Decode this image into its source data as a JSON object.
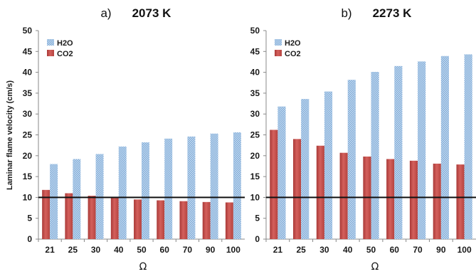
{
  "chart_data": [
    {
      "type": "bar",
      "panel_label": "a)",
      "title": "2073 K",
      "xlabel": "Ω",
      "ylabel": "Laminar flame velocity (cm/s)",
      "ylim": [
        0,
        50
      ],
      "yticks": [
        0,
        5,
        10,
        15,
        20,
        25,
        30,
        35,
        40,
        45,
        50
      ],
      "categories": [
        "21",
        "25",
        "30",
        "40",
        "50",
        "60",
        "70",
        "90",
        "100"
      ],
      "series": [
        {
          "name": "CO2",
          "color": "#c0504d",
          "values": [
            11.8,
            11.0,
            10.4,
            9.9,
            9.5,
            9.3,
            9.1,
            8.9,
            8.8
          ]
        },
        {
          "name": "H2O",
          "color": "#9dc3e6",
          "values": [
            18.0,
            19.2,
            20.4,
            22.2,
            23.2,
            24.1,
            24.6,
            25.3,
            25.6
          ]
        }
      ],
      "reference_line": 10,
      "grid": false,
      "legend": "top-left"
    },
    {
      "type": "bar",
      "panel_label": "b)",
      "title": "2273 K",
      "xlabel": "Ω",
      "ylabel": "",
      "ylim": [
        0,
        50
      ],
      "yticks": [
        0,
        5,
        10,
        15,
        20,
        25,
        30,
        35,
        40,
        45,
        50
      ],
      "categories": [
        "21",
        "25",
        "30",
        "40",
        "50",
        "60",
        "70",
        "90",
        "100"
      ],
      "series": [
        {
          "name": "CO2",
          "color": "#c0504d",
          "values": [
            26.2,
            24.0,
            22.4,
            20.7,
            19.8,
            19.2,
            18.8,
            18.1,
            17.9
          ]
        },
        {
          "name": "H2O",
          "color": "#9dc3e6",
          "values": [
            31.8,
            33.6,
            35.4,
            38.2,
            40.1,
            41.5,
            42.6,
            43.9,
            44.3
          ]
        }
      ],
      "reference_line": 10,
      "grid": false,
      "legend": "top-left"
    }
  ]
}
